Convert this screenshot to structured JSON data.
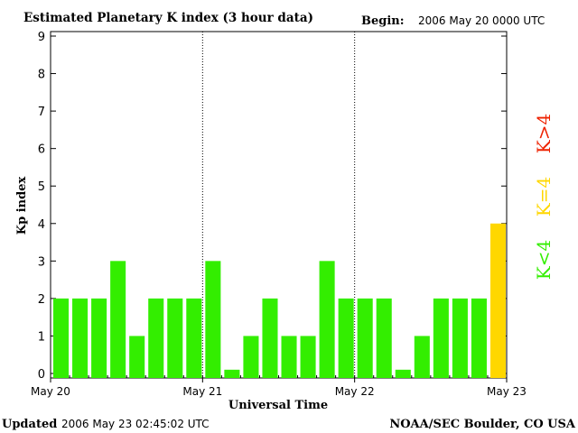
{
  "chart_data": {
    "type": "bar",
    "title": "Estimated Planetary K index (3 hour data)",
    "begin_label": "Begin:",
    "begin_value": "2006 May 20 0000 UTC",
    "xlabel": "Universal Time",
    "ylabel": "Kp index",
    "ylim": [
      0,
      9
    ],
    "yticks": [
      "0",
      "1",
      "2",
      "3",
      "4",
      "5",
      "6",
      "7",
      "8",
      "9"
    ],
    "xtick_labels": [
      "May 20",
      "May 21",
      "May 22",
      "May 23"
    ],
    "day_dividers_after_bar": [
      8,
      16
    ],
    "values": [
      2,
      2,
      2,
      3,
      1,
      2,
      2,
      2,
      3,
      0.1,
      1,
      2,
      1,
      1,
      3,
      2,
      2,
      2,
      0.1,
      1,
      2,
      2,
      2,
      4
    ],
    "legend": [
      {
        "label": "K<4",
        "color": "#33ee00"
      },
      {
        "label": "K=4",
        "color": "#ffd700"
      },
      {
        "label": "K>4",
        "color": "#ee2200"
      }
    ],
    "legend_placement": "right-vertical",
    "grid": false
  },
  "footer": {
    "updated_label": "Updated",
    "updated_value": "2006 May 23 02:45:02 UTC",
    "source": "NOAA/SEC Boulder, CO USA"
  },
  "colors": {
    "low": "#33ee00",
    "mid": "#ffd700",
    "high": "#ee2200",
    "bar_edge": "#22aa00"
  }
}
